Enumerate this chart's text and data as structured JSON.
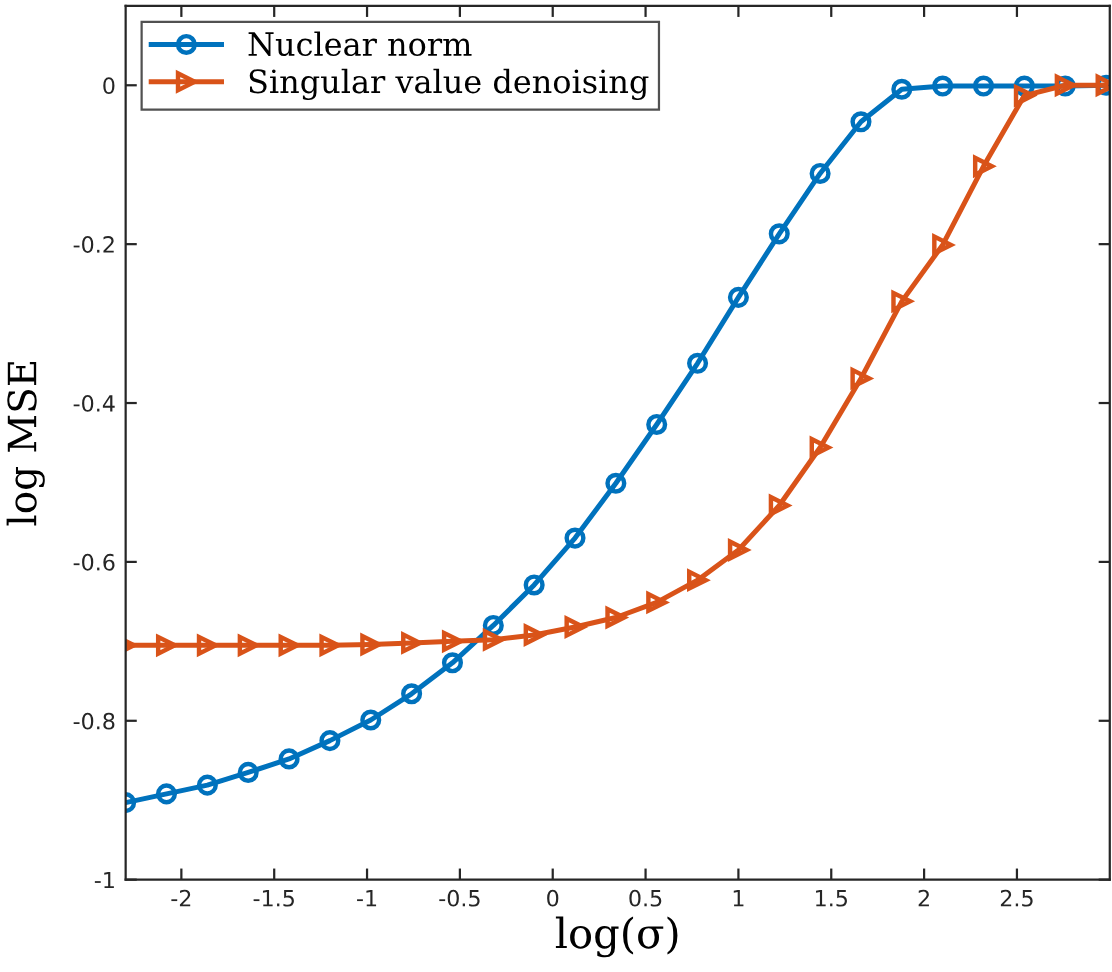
{
  "chart_data": {
    "type": "line",
    "xlabel": "log(σ)",
    "ylabel": "log MSE",
    "x": [
      -2.3,
      -2.08,
      -1.86,
      -1.64,
      -1.42,
      -1.2,
      -0.98,
      -0.76,
      -0.54,
      -0.32,
      -0.1,
      0.12,
      0.34,
      0.56,
      0.78,
      1.0,
      1.22,
      1.44,
      1.66,
      1.88,
      2.1,
      2.32,
      2.54,
      2.76,
      2.98
    ],
    "series": [
      {
        "name": "Nuclear norm",
        "color": "#0072bd",
        "marker": "circle",
        "values": [
          -0.903,
          -0.892,
          -0.881,
          -0.865,
          -0.848,
          -0.825,
          -0.799,
          -0.766,
          -0.727,
          -0.68,
          -0.629,
          -0.57,
          -0.501,
          -0.427,
          -0.35,
          -0.267,
          -0.187,
          -0.111,
          -0.046,
          -0.005,
          -0.001,
          -0.001,
          -0.001,
          -0.001,
          0
        ]
      },
      {
        "name": "Singular value denoising",
        "color": "#d95319",
        "marker": "triangle",
        "values": [
          -0.705,
          -0.705,
          -0.705,
          -0.705,
          -0.705,
          -0.705,
          -0.704,
          -0.702,
          -0.7,
          -0.698,
          -0.692,
          -0.682,
          -0.67,
          -0.651,
          -0.623,
          -0.585,
          -0.529,
          -0.456,
          -0.369,
          -0.272,
          -0.201,
          -0.102,
          -0.013,
          0,
          0
        ]
      }
    ],
    "xlim": [
      -2.3,
      3.0
    ],
    "ylim": [
      -1,
      0.1
    ],
    "xticks": [
      -2,
      -1.5,
      -1,
      -0.5,
      0,
      0.5,
      1,
      1.5,
      2,
      2.5
    ],
    "yticks": [
      -1,
      -0.8,
      -0.6,
      -0.4,
      -0.2,
      0
    ],
    "legend": "top left",
    "grid": false,
    "line_style": "solid"
  }
}
